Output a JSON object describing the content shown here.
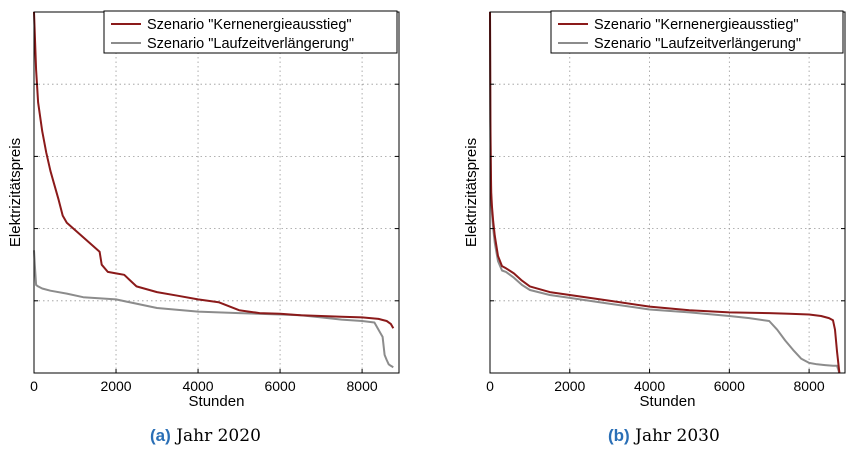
{
  "chart_data": [
    {
      "type": "line",
      "caption_label": "(a)",
      "caption_text": "Jahr 2020",
      "xlabel": "Stunden",
      "ylabel": "Elektrizitätspreis",
      "xlim": [
        0,
        8900
      ],
      "ylim": [
        0,
        5
      ],
      "xticks": [
        0,
        2000,
        4000,
        6000,
        8000
      ],
      "yticks": [
        1,
        2,
        3,
        4
      ],
      "grid": true,
      "legend_position": "top-right",
      "colors": {
        "series1": "#8b1a1a",
        "series2": "#8c8c8c"
      },
      "series": [
        {
          "name": "Szenario \"Kernenergieausstieg\"",
          "x": [
            0,
            50,
            100,
            200,
            300,
            400,
            500,
            600,
            700,
            800,
            1000,
            1200,
            1400,
            1600,
            1650,
            1800,
            2000,
            2200,
            2500,
            3000,
            3500,
            4000,
            4500,
            5000,
            5500,
            6000,
            6500,
            7000,
            7500,
            8000,
            8400,
            8600,
            8700,
            8760
          ],
          "values": [
            5.0,
            4.2,
            3.75,
            3.35,
            3.05,
            2.8,
            2.6,
            2.4,
            2.18,
            2.08,
            1.98,
            1.88,
            1.78,
            1.68,
            1.5,
            1.4,
            1.38,
            1.36,
            1.2,
            1.12,
            1.07,
            1.02,
            0.98,
            0.87,
            0.83,
            0.82,
            0.8,
            0.79,
            0.78,
            0.77,
            0.75,
            0.72,
            0.68,
            0.62
          ]
        },
        {
          "name": "Szenario \"Laufzeitverlängerung\"",
          "x": [
            0,
            20,
            50,
            100,
            200,
            400,
            800,
            1200,
            2000,
            3000,
            4000,
            5000,
            6000,
            6500,
            7000,
            7500,
            8000,
            8300,
            8500,
            8550,
            8600,
            8650,
            8700,
            8760
          ],
          "values": [
            1.7,
            1.5,
            1.22,
            1.2,
            1.17,
            1.14,
            1.1,
            1.05,
            1.02,
            0.9,
            0.85,
            0.83,
            0.81,
            0.8,
            0.77,
            0.74,
            0.72,
            0.7,
            0.5,
            0.25,
            0.18,
            0.12,
            0.1,
            0.08
          ]
        }
      ]
    },
    {
      "type": "line",
      "caption_label": "(b)",
      "caption_text": "Jahr 2030",
      "xlabel": "Stunden",
      "ylabel": "Elektrizitätspreis",
      "xlim": [
        0,
        8900
      ],
      "ylim": [
        0,
        5
      ],
      "xticks": [
        0,
        2000,
        4000,
        6000,
        8000
      ],
      "yticks": [
        1,
        2,
        3,
        4
      ],
      "grid": true,
      "legend_position": "top-right",
      "colors": {
        "series1": "#8b1a1a",
        "series2": "#8c8c8c"
      },
      "series": [
        {
          "name": "Szenario \"Kernenergieausstieg\"",
          "x": [
            0,
            10,
            20,
            30,
            50,
            80,
            120,
            200,
            300,
            400,
            600,
            800,
            1000,
            1500,
            2000,
            3000,
            4000,
            5000,
            6000,
            7000,
            7500,
            8000,
            8300,
            8500,
            8600,
            8650,
            8700,
            8760
          ],
          "values": [
            5.0,
            3.5,
            2.9,
            2.5,
            2.3,
            2.1,
            1.9,
            1.62,
            1.48,
            1.45,
            1.38,
            1.28,
            1.2,
            1.12,
            1.08,
            1.0,
            0.92,
            0.87,
            0.84,
            0.83,
            0.82,
            0.81,
            0.79,
            0.76,
            0.73,
            0.6,
            0.3,
            0.0
          ]
        },
        {
          "name": "Szenario \"Laufzeitverlängerung\"",
          "x": [
            0,
            10,
            20,
            30,
            50,
            80,
            120,
            200,
            300,
            400,
            600,
            800,
            1000,
            1500,
            2000,
            3000,
            4000,
            5000,
            6000,
            6500,
            7000,
            7200,
            7400,
            7600,
            7800,
            8000,
            8200,
            8400,
            8600,
            8700,
            8760
          ],
          "values": [
            5.0,
            3.3,
            2.8,
            2.4,
            2.2,
            2.0,
            1.8,
            1.55,
            1.42,
            1.4,
            1.32,
            1.22,
            1.15,
            1.08,
            1.04,
            0.96,
            0.88,
            0.84,
            0.79,
            0.76,
            0.72,
            0.6,
            0.45,
            0.32,
            0.2,
            0.14,
            0.12,
            0.11,
            0.1,
            0.1,
            0.0
          ]
        }
      ]
    }
  ]
}
